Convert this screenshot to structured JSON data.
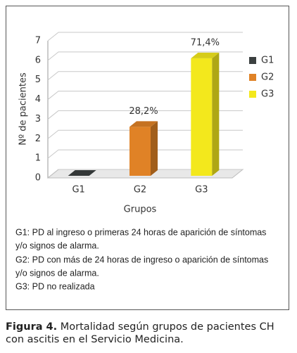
{
  "chart_data": {
    "type": "bar3d",
    "y_label": "Nº de pacientes",
    "x_label": "Grupos",
    "categories": [
      "G1",
      "G2",
      "G3"
    ],
    "values": [
      0,
      2.5,
      6
    ],
    "bar_labels": [
      null,
      "28,2%",
      "71,4%"
    ],
    "colors": [
      "#3b4040",
      "#e08226",
      "#f3e81c"
    ],
    "ylim": [
      0,
      7
    ],
    "yticks": [
      0,
      1,
      2,
      3,
      4,
      5,
      6,
      7
    ],
    "grid": true,
    "legend": "right"
  },
  "notes": [
    "G1: PD al ingreso o primeras 24 horas de aparición de síntomas",
    "y/o signos de alarma.",
    "G2: PD con más de 24 horas de ingreso o aparición de síntomas",
    "y/o signos de alarma.",
    "G3: PD no realizada"
  ],
  "caption": {
    "label": "Figura 4.",
    "text": "Mortalidad según grupos de pacientes CH con ascitis en el Servicio Medicina."
  }
}
